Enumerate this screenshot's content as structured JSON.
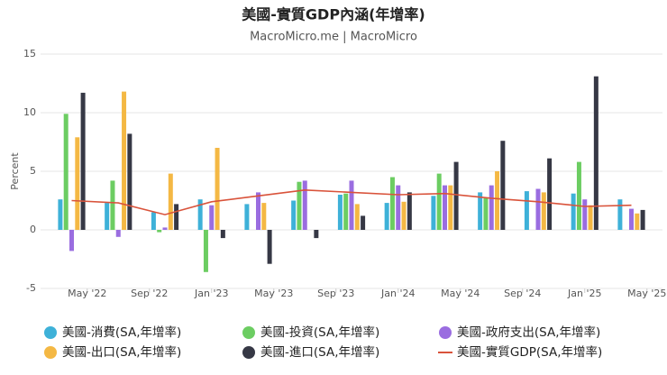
{
  "chart_data": {
    "type": "bar",
    "title": "美國-實質GDP內涵(年增率)",
    "subtitle": "MacroMicro.me | MacroMicro",
    "y_label": "Percent",
    "x": [
      "2022-04",
      "2022-07",
      "2022-10",
      "2023-01",
      "2023-04",
      "2023-07",
      "2023-10",
      "2024-01",
      "2024-04",
      "2024-07",
      "2024-10",
      "2025-01",
      "2025-04"
    ],
    "xlim": [
      "2022-02",
      "2025-06"
    ],
    "xticks": [
      {
        "value": "2022-05",
        "label": "May '22"
      },
      {
        "value": "2022-09",
        "label": "Sep '22"
      },
      {
        "value": "2023-01",
        "label": "Jan '23"
      },
      {
        "value": "2023-05",
        "label": "May '23"
      },
      {
        "value": "2023-09",
        "label": "Sep '23"
      },
      {
        "value": "2024-01",
        "label": "Jan '24"
      },
      {
        "value": "2024-05",
        "label": "May '24"
      },
      {
        "value": "2024-09",
        "label": "Sep '24"
      },
      {
        "value": "2025-01",
        "label": "Jan '25"
      },
      {
        "value": "2025-05",
        "label": "May '25"
      }
    ],
    "ylim": [
      -5,
      15
    ],
    "yticks": [
      -5,
      0,
      5,
      10,
      15
    ],
    "grid": true,
    "series": [
      {
        "name": "美國-消費(SA,年增率)",
        "type": "bar",
        "color": "#3eb1d8",
        "values": [
          2.6,
          2.3,
          1.5,
          2.6,
          2.2,
          2.5,
          3.0,
          2.3,
          2.9,
          3.2,
          3.3,
          3.1,
          2.6
        ]
      },
      {
        "name": "美國-投資(SA,年增率)",
        "type": "bar",
        "color": "#6ccd62",
        "values": [
          9.9,
          4.2,
          -0.2,
          -3.6,
          null,
          4.1,
          3.1,
          4.5,
          4.8,
          2.7,
          null,
          5.8,
          null
        ]
      },
      {
        "name": "美國-政府支出(SA,年增率)",
        "type": "bar",
        "color": "#9a6de0",
        "values": [
          -1.8,
          -0.6,
          0.2,
          2.1,
          3.2,
          4.2,
          4.2,
          3.8,
          3.8,
          3.8,
          3.5,
          2.6,
          1.8
        ]
      },
      {
        "name": "美國-出口(SA,年增率)",
        "type": "bar",
        "color": "#f4b844",
        "values": [
          7.9,
          11.8,
          4.8,
          7.0,
          2.3,
          null,
          2.2,
          2.4,
          3.8,
          5.0,
          3.2,
          2.1,
          1.4
        ]
      },
      {
        "name": "美國-進口(SA,年增率)",
        "type": "bar",
        "color": "#363845",
        "values": [
          11.7,
          8.2,
          2.2,
          -0.7,
          -2.9,
          -0.7,
          1.2,
          3.2,
          5.8,
          7.6,
          6.1,
          13.1,
          1.7
        ]
      },
      {
        "name": "美國-實質GDP(SA,年增率)",
        "type": "line",
        "color": "#d9533b",
        "values": [
          2.5,
          2.3,
          1.3,
          2.4,
          2.9,
          3.4,
          3.2,
          3.0,
          3.1,
          2.7,
          2.4,
          2.0,
          2.1
        ]
      }
    ]
  }
}
